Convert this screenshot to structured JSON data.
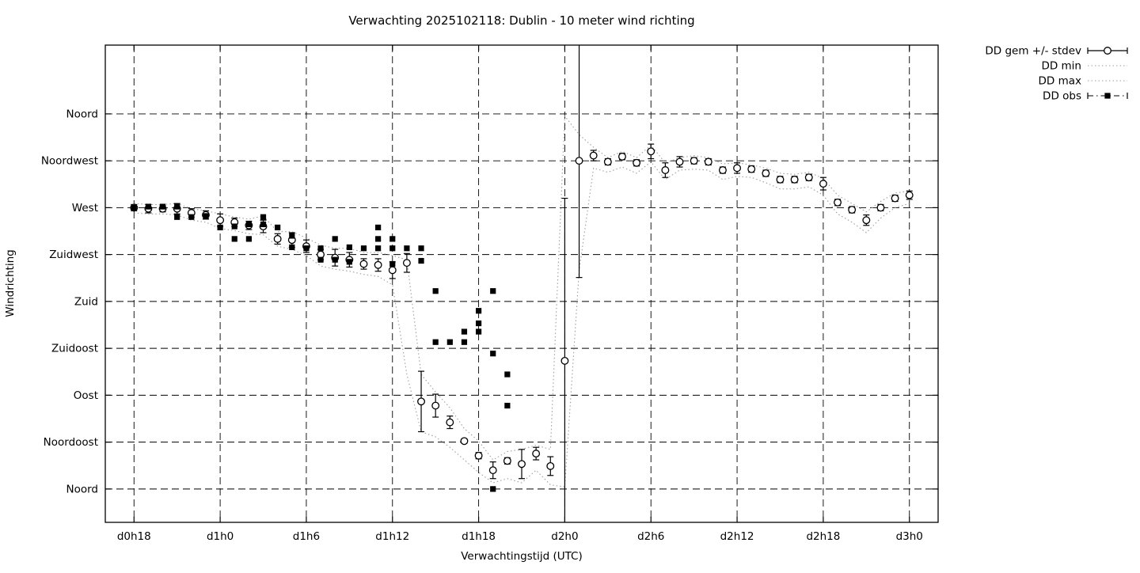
{
  "chart_data": {
    "type": "line",
    "title": "Verwachting 2025102118: Dublin - 10 meter wind richting",
    "xlabel": "Verwachtingstijd (UTC)",
    "ylabel": "Windrichting",
    "xlim": [
      16,
      74
    ],
    "ylim": [
      -32,
      426
    ],
    "grid": true,
    "legend_position": "outside-top-right",
    "colors": {
      "line": "#000000",
      "envelope": "#9e9e9e",
      "background": "#ffffff"
    },
    "xticks": [
      {
        "t": 18,
        "label": "d0h18"
      },
      {
        "t": 24,
        "label": "d1h0"
      },
      {
        "t": 30,
        "label": "d1h6"
      },
      {
        "t": 36,
        "label": "d1h12"
      },
      {
        "t": 42,
        "label": "d1h18"
      },
      {
        "t": 48,
        "label": "d2h0"
      },
      {
        "t": 54,
        "label": "d2h6"
      },
      {
        "t": 60,
        "label": "d2h12"
      },
      {
        "t": 66,
        "label": "d2h18"
      },
      {
        "t": 72,
        "label": "d3h0"
      }
    ],
    "yticks": [
      {
        "deg": 360,
        "label": "Noord"
      },
      {
        "deg": 315,
        "label": "Noordwest"
      },
      {
        "deg": 270,
        "label": "West"
      },
      {
        "deg": 225,
        "label": "Zuidwest"
      },
      {
        "deg": 180,
        "label": "Zuid"
      },
      {
        "deg": 135,
        "label": "Zuidoost"
      },
      {
        "deg": 90,
        "label": "Oost"
      },
      {
        "deg": 45,
        "label": "Noordoost"
      },
      {
        "deg": 0,
        "label": "Noord"
      }
    ],
    "series": [
      {
        "id": "gem",
        "name": "DD gem +/- stdev",
        "style": "errorbar-circle",
        "color": "#000000",
        "points": [
          [
            18,
            270,
            3
          ],
          [
            19,
            269,
            4
          ],
          [
            20,
            269,
            3
          ],
          [
            21,
            269,
            5
          ],
          [
            22,
            265,
            4
          ],
          [
            23,
            263,
            4
          ],
          [
            24,
            258,
            6
          ],
          [
            25,
            256,
            4
          ],
          [
            26,
            253,
            4
          ],
          [
            27,
            252,
            6
          ],
          [
            28,
            240,
            5
          ],
          [
            29,
            239,
            7
          ],
          [
            30,
            233,
            6
          ],
          [
            31,
            225,
            5
          ],
          [
            32,
            222,
            8
          ],
          [
            33,
            220,
            7
          ],
          [
            34,
            216,
            5
          ],
          [
            35,
            215,
            6
          ],
          [
            36,
            210,
            8
          ],
          [
            37,
            217,
            9
          ],
          [
            38,
            84,
            29
          ],
          [
            39,
            80,
            11
          ],
          [
            40,
            64,
            6
          ],
          [
            41,
            46,
            2
          ],
          [
            42,
            32,
            3
          ],
          [
            43,
            18,
            8
          ],
          [
            44,
            27,
            3
          ],
          [
            45,
            24,
            14
          ],
          [
            46,
            34,
            6
          ],
          [
            47,
            22,
            9
          ],
          [
            48,
            123,
            156
          ],
          [
            49,
            315,
            112
          ],
          [
            50,
            320,
            5
          ],
          [
            51,
            314,
            3
          ],
          [
            52,
            319,
            3
          ],
          [
            53,
            313,
            3
          ],
          [
            54,
            324,
            7
          ],
          [
            55,
            306,
            7
          ],
          [
            56,
            314,
            5
          ],
          [
            57,
            315,
            3
          ],
          [
            58,
            314,
            3
          ],
          [
            59,
            306,
            3
          ],
          [
            60,
            308,
            5
          ],
          [
            61,
            307,
            3
          ],
          [
            62,
            303,
            3
          ],
          [
            63,
            297,
            3
          ],
          [
            64,
            297,
            3
          ],
          [
            65,
            299,
            3
          ],
          [
            66,
            293,
            6
          ],
          [
            67,
            275,
            3
          ],
          [
            68,
            268,
            3
          ],
          [
            69,
            258,
            5
          ],
          [
            70,
            270,
            3
          ],
          [
            71,
            279,
            3
          ],
          [
            72,
            282,
            4
          ]
        ]
      },
      {
        "id": "min",
        "name": "DD min",
        "style": "dotted",
        "color": "#9e9e9e",
        "t_start": 18,
        "values": [
          265,
          264,
          264,
          263,
          258,
          256,
          250,
          248,
          245,
          244,
          233,
          230,
          224,
          214,
          211,
          209,
          206,
          204,
          196,
          110,
          55,
          50,
          40,
          28,
          16,
          6,
          10,
          6,
          18,
          4,
          2,
          210,
          308,
          304,
          309,
          303,
          314,
          297,
          306,
          307,
          306,
          297,
          300,
          299,
          294,
          288,
          288,
          290,
          282,
          264,
          256,
          246,
          260,
          270,
          274
        ]
      },
      {
        "id": "max",
        "name": "DD max",
        "style": "dotted",
        "color": "#9e9e9e",
        "t_start": 18,
        "values": [
          274,
          273,
          273,
          274,
          269,
          267,
          264,
          261,
          259,
          262,
          247,
          247,
          241,
          234,
          231,
          231,
          227,
          227,
          224,
          220,
          110,
          93,
          78,
          58,
          46,
          28,
          36,
          38,
          42,
          38,
          358,
          340,
          328,
          318,
          324,
          318,
          330,
          313,
          318,
          320,
          318,
          312,
          313,
          311,
          308,
          303,
          302,
          304,
          298,
          282,
          274,
          266,
          276,
          284,
          286
        ]
      },
      {
        "id": "obs",
        "name": "DD obs",
        "style": "square",
        "color": "#000000",
        "points": [
          [
            18,
            270
          ],
          [
            19,
            271
          ],
          [
            20,
            271
          ],
          [
            21,
            271
          ],
          [
            21,
            261
          ],
          [
            22,
            261
          ],
          [
            23,
            262
          ],
          [
            24,
            251
          ],
          [
            25,
            252
          ],
          [
            25,
            240
          ],
          [
            26,
            254
          ],
          [
            26,
            240
          ],
          [
            27,
            261
          ],
          [
            27,
            254
          ],
          [
            28,
            251
          ],
          [
            29,
            243
          ],
          [
            29,
            232
          ],
          [
            30,
            231
          ],
          [
            31,
            231
          ],
          [
            31,
            220
          ],
          [
            32,
            240
          ],
          [
            32,
            220
          ],
          [
            33,
            232
          ],
          [
            33,
            218
          ],
          [
            34,
            231
          ],
          [
            35,
            251
          ],
          [
            35,
            240
          ],
          [
            35,
            231
          ],
          [
            36,
            240
          ],
          [
            36,
            231
          ],
          [
            36,
            216
          ],
          [
            37,
            231
          ],
          [
            38,
            231
          ],
          [
            38,
            219
          ],
          [
            39,
            190
          ],
          [
            39,
            141
          ],
          [
            40,
            141
          ],
          [
            41,
            151
          ],
          [
            41,
            141
          ],
          [
            42,
            171
          ],
          [
            42,
            159
          ],
          [
            42,
            151
          ],
          [
            43,
            190
          ],
          [
            43,
            130
          ],
          [
            43,
            0
          ],
          [
            44,
            110
          ],
          [
            44,
            80
          ]
        ]
      }
    ]
  }
}
